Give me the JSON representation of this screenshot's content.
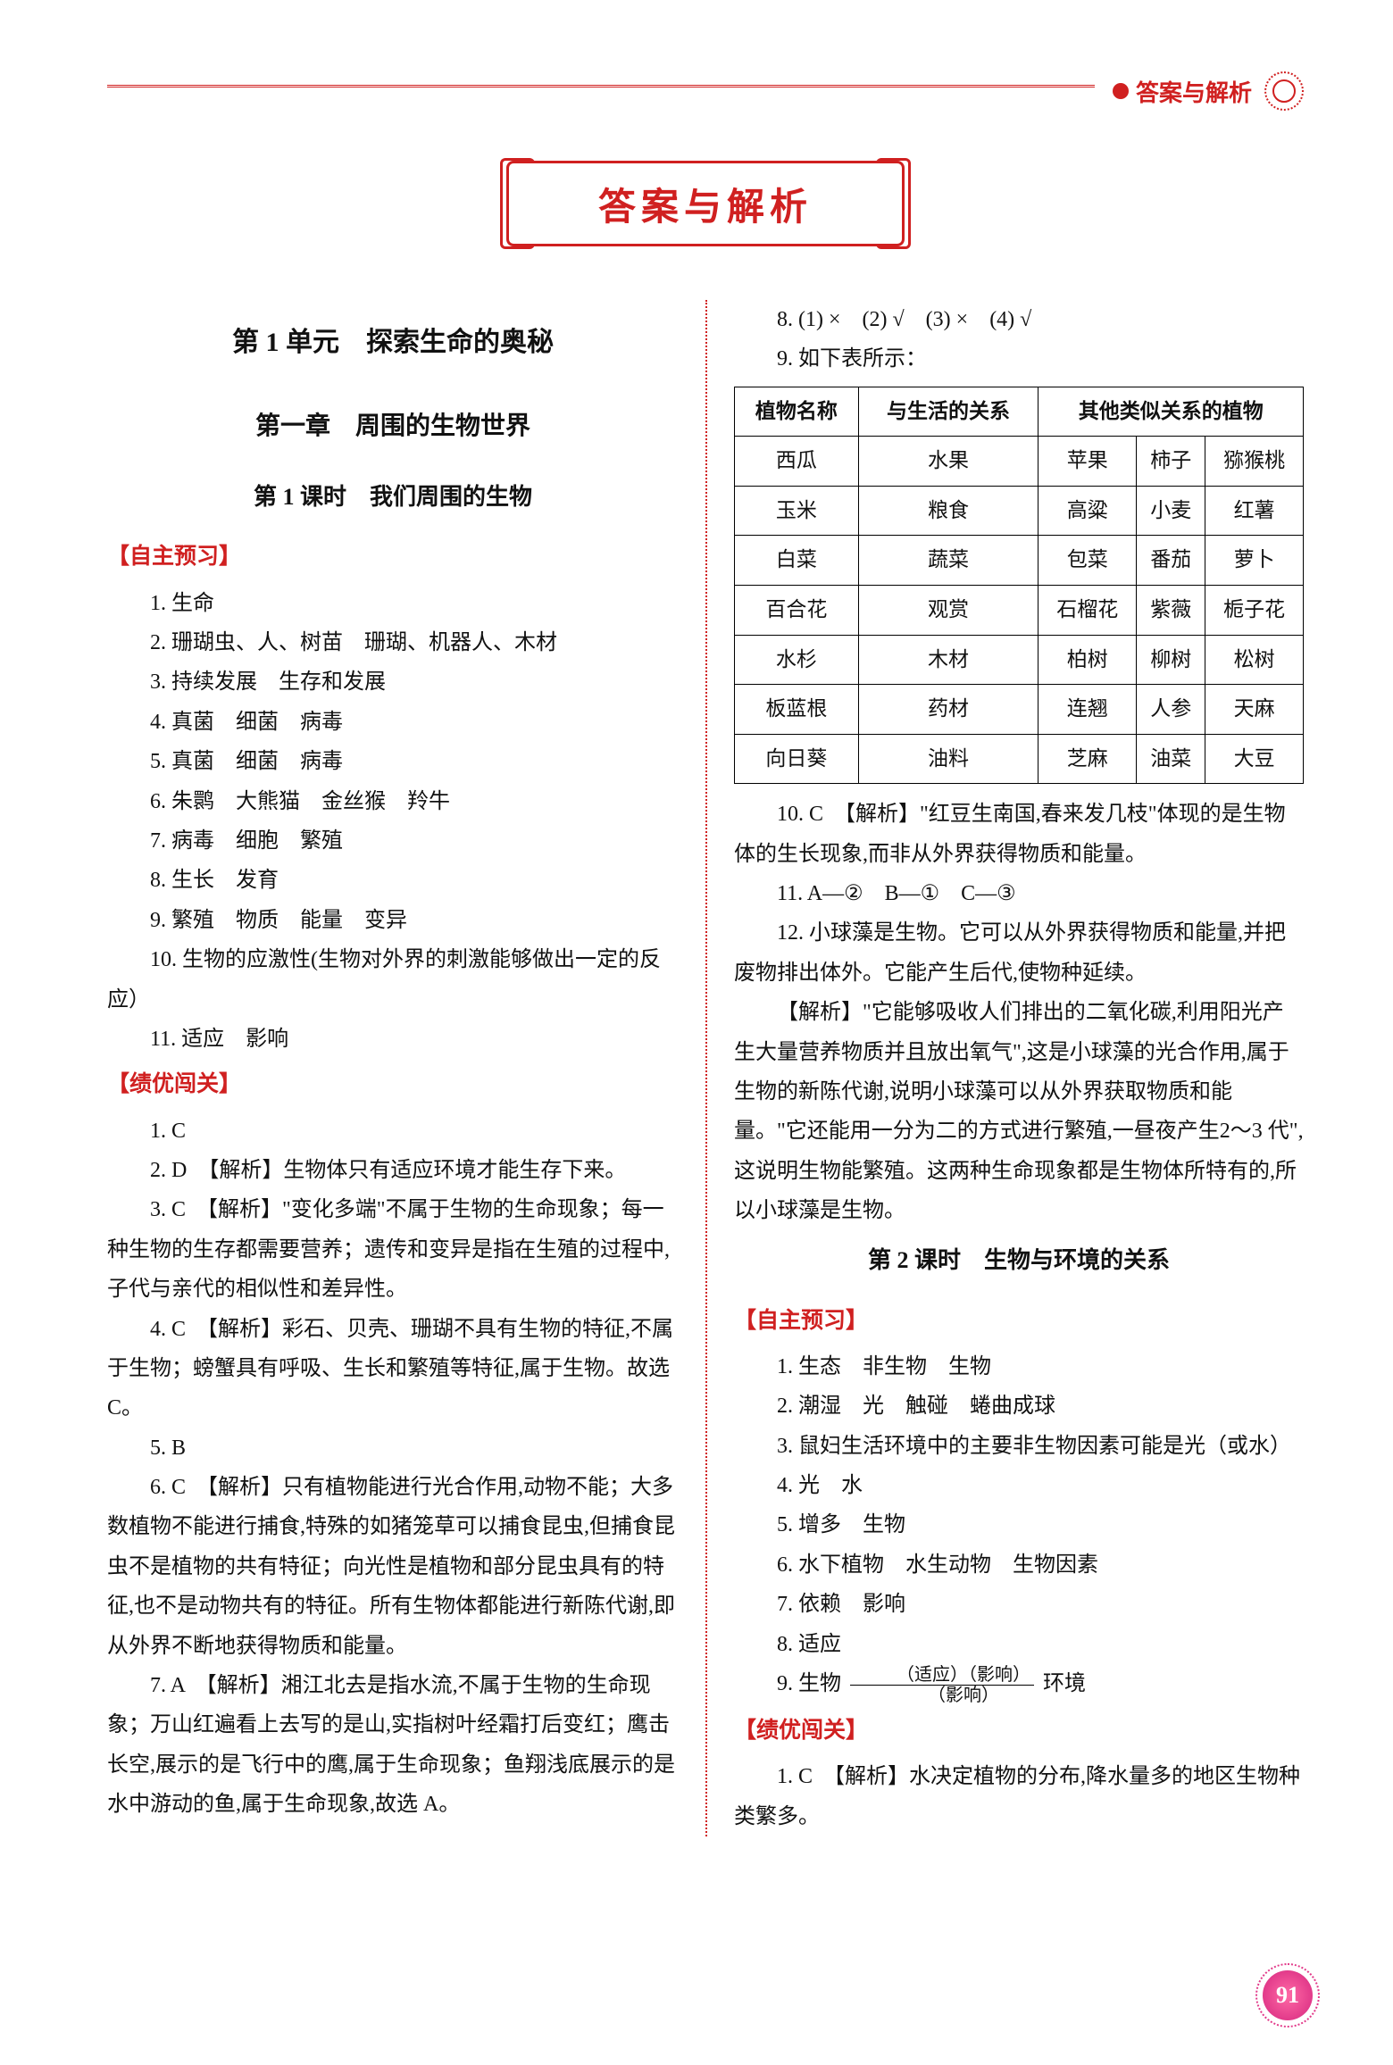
{
  "header": {
    "label": "答案与解析"
  },
  "title_banner": "答案与解析",
  "page_number": "91",
  "left": {
    "unit_title": "第 1 单元　探索生命的奥秘",
    "chapter_title": "第一章　周围的生物世界",
    "lesson_title": "第 1 课时　我们周围的生物",
    "section_preview": "【自主预习】",
    "pre_items": [
      "1. 生命",
      "2. 珊瑚虫、人、树苗　珊瑚、机器人、木材",
      "3. 持续发展　生存和发展",
      "4. 真菌　细菌　病毒",
      "5. 真菌　细菌　病毒",
      "6. 朱鹮　大熊猫　金丝猴　羚牛",
      "7. 病毒　细胞　繁殖",
      "8. 生长　发育",
      "9. 繁殖　物质　能量　变异",
      "10. 生物的应激性(生物对外界的刺激能够做出一定的反应）",
      "11. 适应　影响"
    ],
    "section_practice": "【绩优闯关】",
    "practice": [
      "1. C",
      "2. D　【解析】生物体只有适应环境才能生存下来。",
      "3. C　【解析】\"变化多端\"不属于生物的生命现象；每一种生物的生存都需要营养；遗传和变异是指在生殖的过程中,子代与亲代的相似性和差异性。",
      "4. C　【解析】彩石、贝壳、珊瑚不具有生物的特征,不属于生物；螃蟹具有呼吸、生长和繁殖等特征,属于生物。故选 C。",
      "5. B",
      "6. C　【解析】只有植物能进行光合作用,动物不能；大多数植物不能进行捕食,特殊的如猪笼草可以捕食昆虫,但捕食昆虫不是植物的共有特征；向光性是植物和部分昆虫具有的特征,也不是动物共有的特征。所有生物体都能进行新陈代谢,即从外界不断地获得物质和能量。",
      "7. A　【解析】湘江北去是指水流,不属于生物的生命现象；万山红遍看上去写的是山,实指树叶经霜打后变红；鹰击长空,展示的是飞行中的鹰,属于生命现象；鱼翔浅底展示的是水中游动的鱼,属于生命现象,故选 A。"
    ]
  },
  "right": {
    "items_top": [
      "8. (1) ×　(2) √　(3) ×　(4) √",
      "9. 如下表所示："
    ],
    "table": {
      "header": [
        "植物名称",
        "与生活的关系",
        "其他类似关系的植物"
      ],
      "rows": [
        [
          "西瓜",
          "水果",
          "苹果",
          "柿子",
          "猕猴桃"
        ],
        [
          "玉米",
          "粮食",
          "高粱",
          "小麦",
          "红薯"
        ],
        [
          "白菜",
          "蔬菜",
          "包菜",
          "番茄",
          "萝卜"
        ],
        [
          "百合花",
          "观赏",
          "石榴花",
          "紫薇",
          "栀子花"
        ],
        [
          "水杉",
          "木材",
          "柏树",
          "柳树",
          "松树"
        ],
        [
          "板蓝根",
          "药材",
          "连翘",
          "人参",
          "天麻"
        ],
        [
          "向日葵",
          "油料",
          "芝麻",
          "油菜",
          "大豆"
        ]
      ]
    },
    "items_mid": [
      "10. C　【解析】\"红豆生南国,春来发几枝\"体现的是生物体的生长现象,而非从外界获得物质和能量。",
      "11. A—②　B—①　C—③",
      "12. 小球藻是生物。它可以从外界获得物质和能量,并把废物排出体外。它能产生后代,使物种延续。",
      "【解析】\"它能够吸收人们排出的二氧化碳,利用阳光产生大量营养物质并且放出氧气\",这是小球藻的光合作用,属于生物的新陈代谢,说明小球藻可以从外界获取物质和能量。\"它还能用一分为二的方式进行繁殖,一昼夜产生2～3 代\",这说明生物能繁殖。这两种生命现象都是生物体所特有的,所以小球藻是生物。"
    ],
    "lesson2_title": "第 2 课时　生物与环境的关系",
    "section_preview": "【自主预习】",
    "pre2_items": [
      "1. 生态　非生物　生物",
      "2. 潮湿　光　触碰　蜷曲成球",
      "3. 鼠妇生活环境中的主要非生物因素可能是光（或水）",
      "4. 光　水",
      "5. 增多　生物",
      "6. 水下植物　水生动物　生物因素",
      "7. 依赖　影响",
      "8. 适应"
    ],
    "formula": {
      "prefix": "9. 生物",
      "top": "（适应）（影响）",
      "bottom": "（影响）",
      "suffix": "环境"
    },
    "section_practice": "【绩优闯关】",
    "practice2": [
      "1. C　【解析】水决定植物的分布,降水量多的地区生物种类繁多。"
    ]
  },
  "colors": {
    "accent_red": "#d02020",
    "pink_badge": "#e23a8a",
    "text": "#111111",
    "background": "#ffffff"
  }
}
